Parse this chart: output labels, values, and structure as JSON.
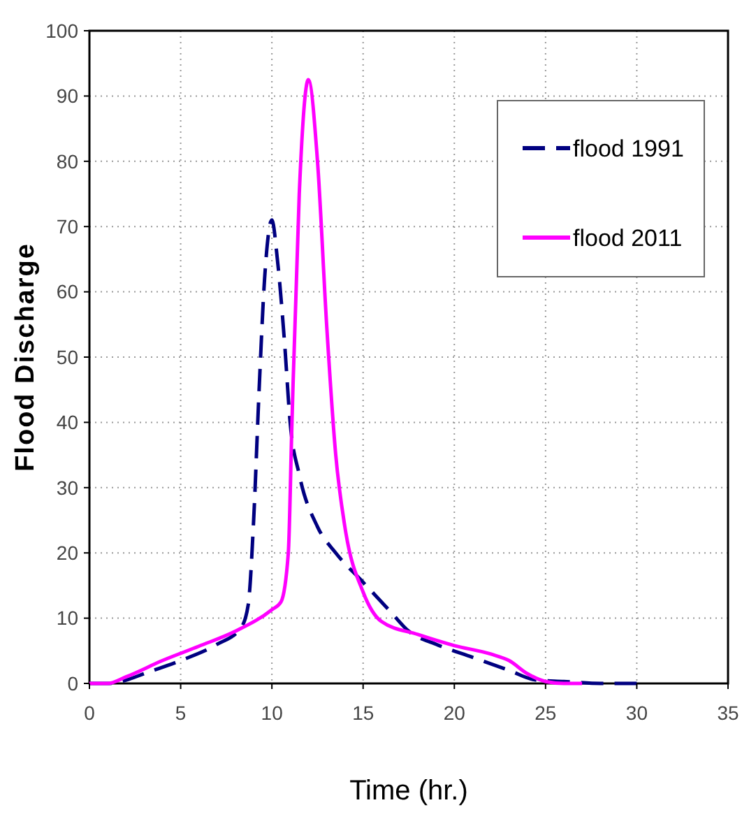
{
  "chart_data": {
    "type": "line",
    "xlabel": "Time (hr.)",
    "ylabel": "Flood Discharge",
    "xlim": [
      0,
      35
    ],
    "xticks": [
      0,
      5,
      10,
      15,
      20,
      25,
      30,
      35
    ],
    "ylim": [
      0,
      100
    ],
    "yticks": [
      0,
      10,
      20,
      30,
      40,
      50,
      60,
      70,
      80,
      90,
      100
    ],
    "grid": true,
    "legend": "top right",
    "series": [
      {
        "name": "flood 1991",
        "color": "#000080",
        "line_style": "dashed",
        "x": [
          0,
          1,
          2,
          3,
          5,
          7,
          8.3,
          8.7,
          9,
          9.3,
          9.6,
          10,
          10.3,
          10.7,
          11,
          11.5,
          12.5,
          13.5,
          15,
          16.5,
          17.5,
          19,
          21,
          23,
          24.5,
          26,
          28,
          30
        ],
        "values": [
          0,
          0,
          0.5,
          1.5,
          3.5,
          6,
          8.5,
          12,
          25,
          45,
          62,
          71,
          65,
          52,
          40,
          32,
          24,
          20,
          15.5,
          11,
          8,
          6,
          4,
          2,
          0.5,
          0.3,
          0,
          0
        ]
      },
      {
        "name": "flood 2011",
        "color": "#ff00ff",
        "line_style": "solid",
        "x": [
          0,
          1,
          2,
          4,
          6,
          8,
          10,
          10.5,
          10.9,
          11.1,
          11.5,
          12,
          12.5,
          13,
          13.5,
          14,
          15,
          16,
          18,
          20,
          22,
          23,
          24,
          25,
          26,
          27
        ],
        "values": [
          0,
          0,
          1,
          3.5,
          5.7,
          8,
          11.3,
          12.5,
          20,
          40,
          75,
          92.5,
          80,
          55,
          35,
          24,
          14,
          9.5,
          7.5,
          5.8,
          4.5,
          3.5,
          1.5,
          0.3,
          0,
          0
        ]
      }
    ]
  }
}
